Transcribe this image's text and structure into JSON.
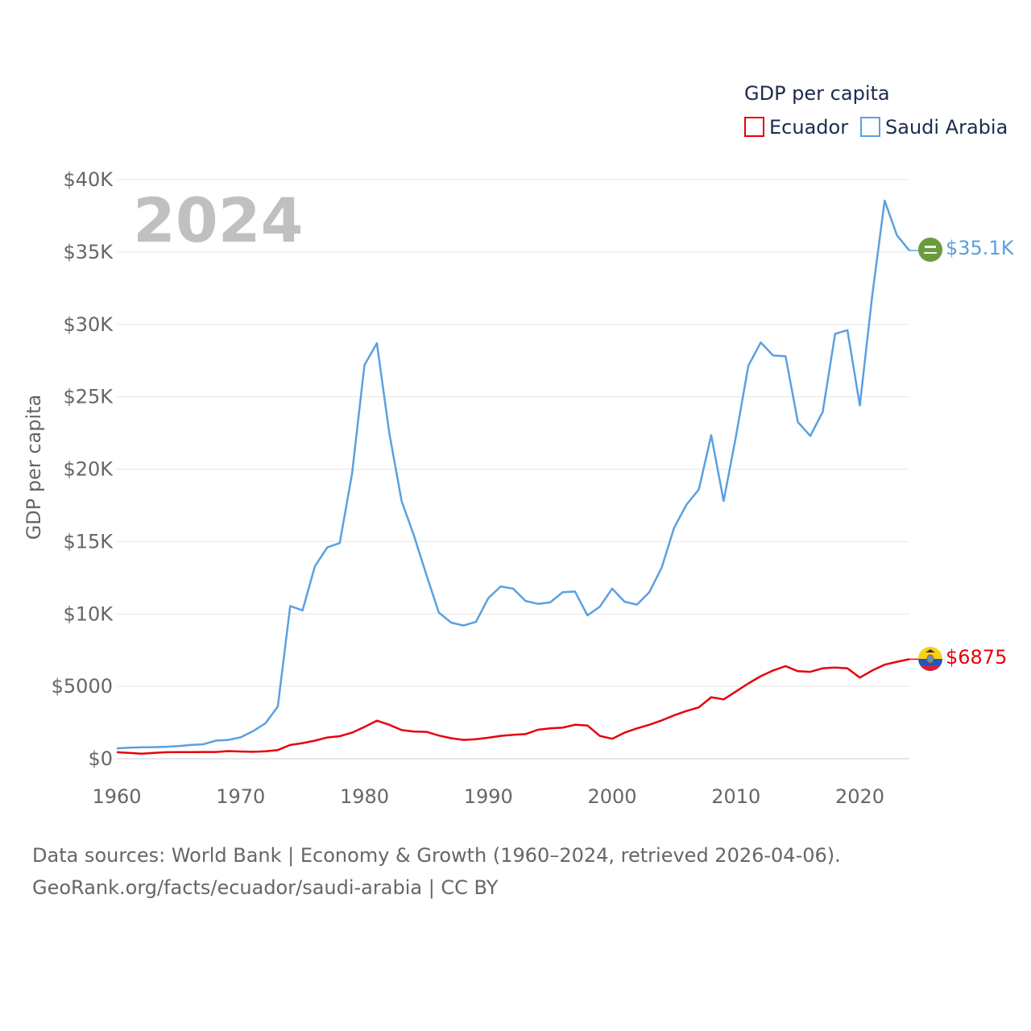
{
  "chart_data": {
    "type": "line",
    "title": "GDP per capita",
    "ylabel": "GDP per capita",
    "xlabel": "",
    "current_year_label": "2024",
    "x_range": [
      1960,
      2024
    ],
    "ylim": [
      0,
      40000
    ],
    "y_ticks": [
      {
        "value": 0,
        "label": "$0"
      },
      {
        "value": 5000,
        "label": "$5000"
      },
      {
        "value": 10000,
        "label": "$10K"
      },
      {
        "value": 15000,
        "label": "$15K"
      },
      {
        "value": 20000,
        "label": "$20K"
      },
      {
        "value": 25000,
        "label": "$25K"
      },
      {
        "value": 30000,
        "label": "$30K"
      },
      {
        "value": 35000,
        "label": "$35K"
      },
      {
        "value": 40000,
        "label": "$40K"
      }
    ],
    "x_ticks": [
      {
        "value": 1960,
        "label": "1960"
      },
      {
        "value": 1970,
        "label": "1970"
      },
      {
        "value": 1980,
        "label": "1980"
      },
      {
        "value": 1990,
        "label": "1990"
      },
      {
        "value": 2000,
        "label": "2000"
      },
      {
        "value": 2010,
        "label": "2010"
      },
      {
        "value": 2020,
        "label": "2020"
      }
    ],
    "grid": true,
    "legend_position": "top-right",
    "x": [
      1960,
      1961,
      1962,
      1963,
      1964,
      1965,
      1966,
      1967,
      1968,
      1969,
      1970,
      1971,
      1972,
      1973,
      1974,
      1975,
      1976,
      1977,
      1978,
      1979,
      1980,
      1981,
      1982,
      1983,
      1984,
      1985,
      1986,
      1987,
      1988,
      1989,
      1990,
      1991,
      1992,
      1993,
      1994,
      1995,
      1996,
      1997,
      1998,
      1999,
      2000,
      2001,
      2002,
      2003,
      2004,
      2005,
      2006,
      2007,
      2008,
      2009,
      2010,
      2011,
      2012,
      2013,
      2014,
      2015,
      2016,
      2017,
      2018,
      2019,
      2020,
      2021,
      2022,
      2023,
      2024
    ],
    "series": [
      {
        "name": "Ecuador",
        "color": "#e8000b",
        "end_label": "$6875",
        "flag": "ecuador-flag-icon",
        "values": [
          450,
          400,
          350,
          400,
          450,
          460,
          460,
          470,
          470,
          530,
          500,
          480,
          510,
          600,
          950,
          1080,
          1250,
          1470,
          1560,
          1800,
          2200,
          2630,
          2350,
          1980,
          1880,
          1860,
          1600,
          1420,
          1300,
          1350,
          1450,
          1580,
          1650,
          1700,
          2000,
          2100,
          2150,
          2350,
          2300,
          1580,
          1380,
          1800,
          2100,
          2350,
          2650,
          3000,
          3300,
          3550,
          4250,
          4100,
          4650,
          5200,
          5700,
          6100,
          6400,
          6050,
          6000,
          6250,
          6300,
          6250,
          5600,
          6100,
          6500,
          6700,
          6875
        ]
      },
      {
        "name": "Saudi Arabia",
        "color": "#5aa0e0",
        "end_label": "$35.1K",
        "flag": "saudi-arabia-flag-icon",
        "values": [
          720,
          760,
          790,
          800,
          830,
          880,
          950,
          1000,
          1250,
          1300,
          1480,
          1900,
          2450,
          3600,
          10550,
          10250,
          13300,
          14600,
          14900,
          19700,
          27200,
          28700,
          22500,
          17800,
          15400,
          12700,
          10100,
          9400,
          9200,
          9450,
          11100,
          11900,
          11750,
          10900,
          10700,
          10800,
          11500,
          11550,
          9900,
          10500,
          11750,
          10850,
          10650,
          11500,
          13200,
          15950,
          17550,
          18600,
          22350,
          17800,
          22300,
          27150,
          28750,
          27850,
          27800,
          23250,
          22300,
          23950,
          29350,
          29600,
          24400,
          32000,
          38550,
          36150,
          35100
        ]
      }
    ]
  },
  "source": {
    "line1": "Data sources: World Bank | Economy & Growth (1960–2024, retrieved 2026-04-06).",
    "line2": "GeoRank.org/facts/ecuador/saudi-arabia | CC BY"
  }
}
